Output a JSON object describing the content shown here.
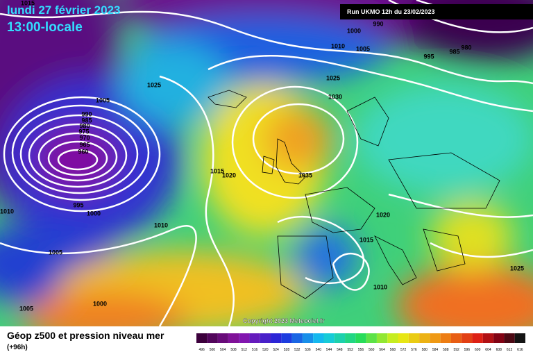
{
  "header": {
    "date": "lundi 27 février 2023",
    "time": "13:00-locale",
    "run": "Run UKMO 12h du 23/02/2023"
  },
  "isobar_labels": [
    "1015",
    "1000",
    "990",
    "1010",
    "1005",
    "995",
    "985",
    "980",
    "1025",
    "1025",
    "1030",
    "1005",
    "990",
    "985",
    "980",
    "975",
    "970",
    "965",
    "960",
    "1015",
    "1020",
    "1035",
    "995",
    "1000",
    "1010",
    "1010",
    "1020",
    "1015",
    "1005",
    "1010",
    "1025",
    "1005",
    "1000"
  ],
  "copyright": "Copyright 2023 Meteociel.fr",
  "footer": {
    "title": "Géop z500 et pression niveau mer",
    "subtitle": "(+96h)"
  },
  "legend": {
    "values": [
      496,
      500,
      504,
      508,
      512,
      516,
      520,
      524,
      528,
      532,
      536,
      540,
      544,
      548,
      552,
      556,
      560,
      564,
      568,
      572,
      576,
      580,
      584,
      588,
      592,
      596,
      600,
      604,
      608,
      612,
      616
    ]
  }
}
